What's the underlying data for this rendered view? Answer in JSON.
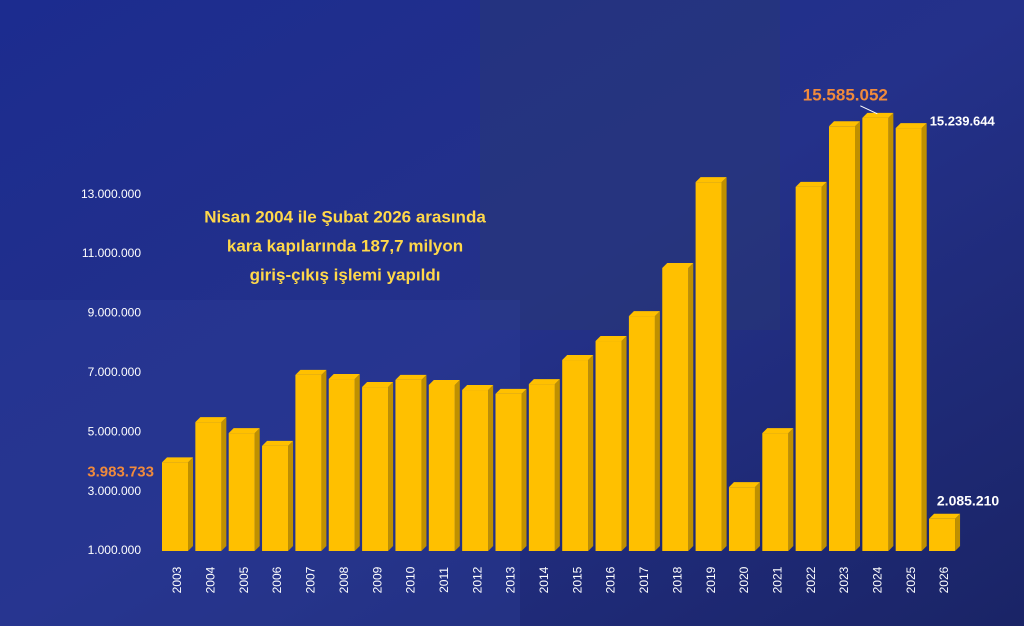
{
  "chart_data": {
    "type": "bar",
    "annotation": [
      "Nisan 2004 ile Şubat 2026 arasında",
      "kara kapılarında 187,7 milyon",
      "giriş-çıkış işlemi yapıldı"
    ],
    "categories": [
      "2003",
      "2004",
      "2005",
      "2006",
      "2007",
      "2008",
      "2009",
      "2010",
      "2011",
      "2012",
      "2013",
      "2014",
      "2015",
      "2016",
      "2017",
      "2018",
      "2019",
      "2020",
      "2021",
      "2022",
      "2023",
      "2024",
      "2025",
      "2026"
    ],
    "values": [
      3983733,
      5340000,
      4970000,
      4540000,
      6930000,
      6790000,
      6520000,
      6760000,
      6590000,
      6420000,
      6290000,
      6620000,
      7430000,
      8070000,
      8910000,
      10530000,
      13420000,
      3150000,
      4970000,
      13260000,
      15300000,
      15585052,
      15239644,
      2085210
    ],
    "value_labels": [
      "3.983.733",
      null,
      null,
      null,
      null,
      null,
      null,
      null,
      null,
      null,
      null,
      null,
      null,
      null,
      null,
      null,
      null,
      null,
      null,
      null,
      null,
      "15.585.052",
      "15.239.644",
      "2.085.210"
    ],
    "value_label_colors": [
      "#f08a3c",
      null,
      null,
      null,
      null,
      null,
      null,
      null,
      null,
      null,
      null,
      null,
      null,
      null,
      null,
      null,
      null,
      null,
      null,
      null,
      null,
      "#f08a3c",
      "#ffffff",
      "#ffffff"
    ],
    "color": "#ffc000",
    "ylim": [
      1000000,
      16000000
    ],
    "yticks": [
      {
        "value": 1000000,
        "label": "1.000.000"
      },
      {
        "value": 3000000,
        "label": "3.000.000"
      },
      {
        "value": 5000000,
        "label": "5.000.000"
      },
      {
        "value": 7000000,
        "label": "7.000.000"
      },
      {
        "value": 9000000,
        "label": "9.000.000"
      },
      {
        "value": 11000000,
        "label": "11.000.000"
      },
      {
        "value": 13000000,
        "label": "13.000.000"
      }
    ]
  }
}
